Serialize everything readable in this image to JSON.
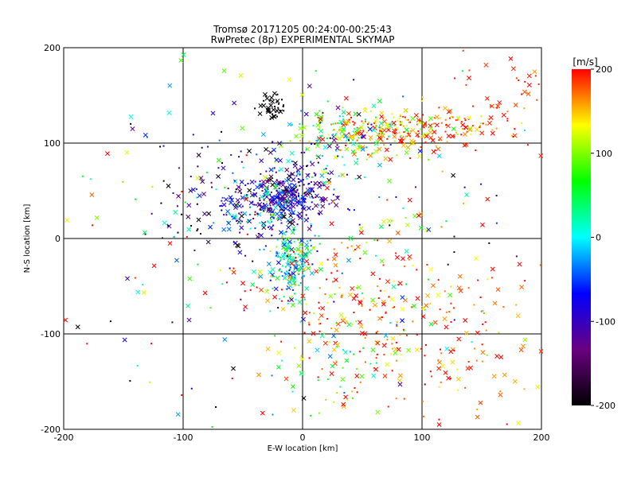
{
  "chart_data": {
    "type": "scatter",
    "title": "Tromsø 20171205 00:24:00-00:25:43",
    "subtitle": "RwPretec (8p) EXPERIMENTAL SKYMAP",
    "xlabel": "E-W location [km]",
    "ylabel": "N-S location [km]",
    "xlim": [
      -200,
      200
    ],
    "ylim": [
      -200,
      200
    ],
    "x_ticks": [
      "-200",
      "-100",
      "0",
      "100",
      "200"
    ],
    "y_ticks": [
      "-200",
      "-100",
      "0",
      "100",
      "200"
    ],
    "grid": true,
    "grid_values": [
      -100,
      0,
      100
    ],
    "colorbar": {
      "label": "[m/s]",
      "range": [
        -200,
        200
      ],
      "ticks": [
        "-200",
        "-100",
        "0",
        "100",
        "200"
      ],
      "colormap": [
        "#000000",
        "#6a0080",
        "#0000ff",
        "#00ffff",
        "#00ff00",
        "#ffff00",
        "#ff0000"
      ]
    },
    "markers": {
      "large": "x (meteor detections)",
      "small": "dot"
    },
    "clusters": [
      {
        "x": -10,
        "y": 45,
        "sx": 18,
        "sy": 14,
        "n": 260,
        "v": -110,
        "vs": 45
      },
      {
        "x": -35,
        "y": 30,
        "sx": 22,
        "sy": 18,
        "n": 180,
        "v": -60,
        "vs": 70
      },
      {
        "x": -10,
        "y": -25,
        "sx": 9,
        "sy": 18,
        "n": 150,
        "v": 10,
        "vs": 55
      },
      {
        "x": 90,
        "y": 115,
        "sx": 35,
        "sy": 10,
        "n": 220,
        "v": 170,
        "vs": 40
      },
      {
        "x": 40,
        "y": 110,
        "sx": 25,
        "sy": 15,
        "n": 120,
        "v": 100,
        "vs": 60
      },
      {
        "x": -25,
        "y": 140,
        "sx": 6,
        "sy": 8,
        "n": 40,
        "v": -200,
        "vs": 5
      },
      {
        "x": 20,
        "y": 90,
        "sx": 25,
        "sy": 25,
        "n": 80,
        "v": -40,
        "vs": 100
      },
      {
        "x": 120,
        "y": -100,
        "sx": 45,
        "sy": 50,
        "n": 170,
        "v": 180,
        "vs": 30
      },
      {
        "x": 40,
        "y": -60,
        "sx": 35,
        "sy": 40,
        "n": 150,
        "v": 150,
        "vs": 70
      },
      {
        "x": 20,
        "y": -140,
        "sx": 25,
        "sy": 25,
        "n": 50,
        "v": 120,
        "vs": 80
      },
      {
        "x": -70,
        "y": 40,
        "sx": 25,
        "sy": 30,
        "n": 70,
        "v": -150,
        "vs": 70
      },
      {
        "x": 170,
        "y": 150,
        "sx": 22,
        "sy": 35,
        "n": 50,
        "v": 190,
        "vs": 20
      },
      {
        "x": 0,
        "y": 0,
        "sx": 100,
        "sy": 100,
        "n": 260,
        "v": 50,
        "vs": 160
      }
    ]
  }
}
